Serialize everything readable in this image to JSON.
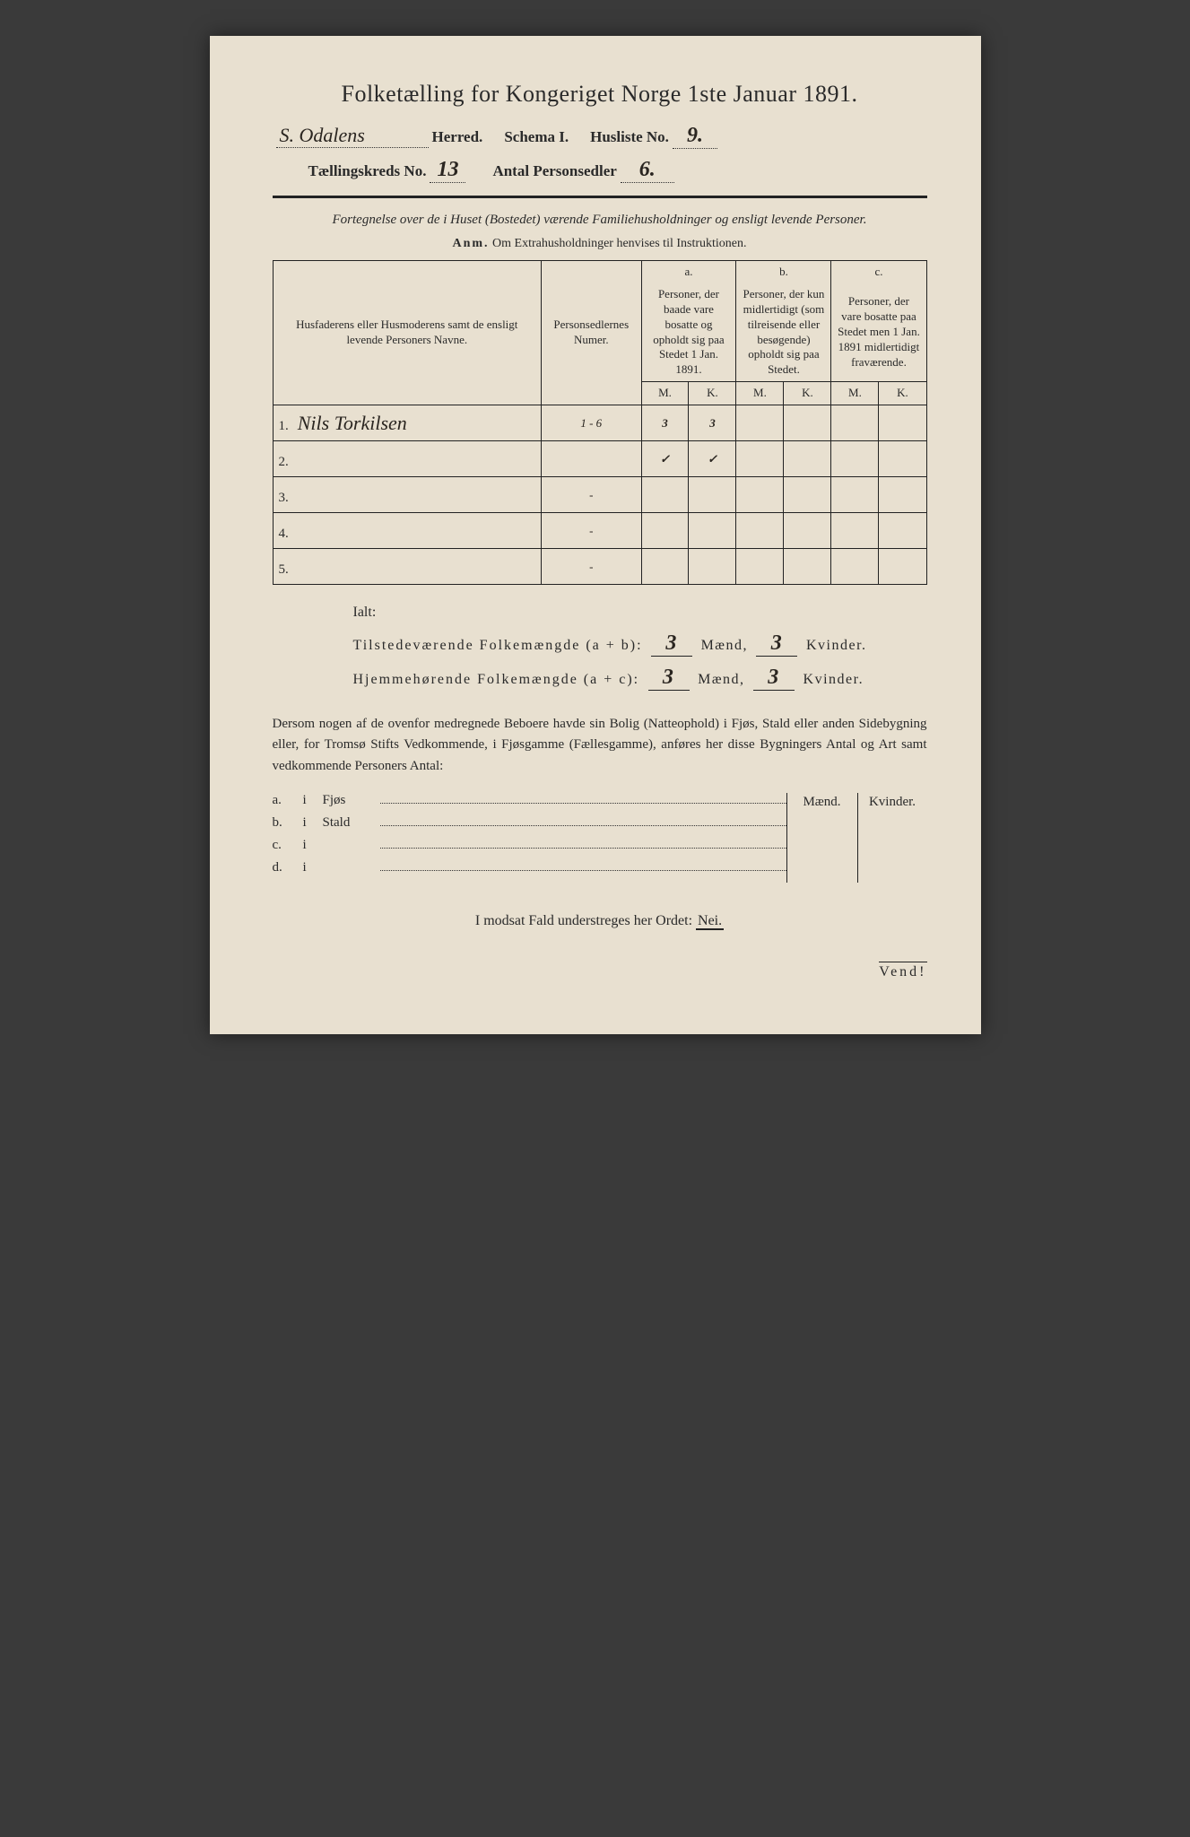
{
  "title": "Folketælling for Kongeriget Norge 1ste Januar 1891.",
  "header": {
    "herred_value": "S. Odalens",
    "herred_label": "Herred.",
    "schema_label": "Schema I.",
    "husliste_label": "Husliste No.",
    "husliste_value": "9.",
    "kreds_label": "Tællingskreds No.",
    "kreds_value": "13",
    "antal_label": "Antal Personsedler",
    "antal_value": "6."
  },
  "subtitle": "Fortegnelse over de i Huset (Bostedet) værende Familiehusholdninger og ensligt levende Personer.",
  "anm_label": "Anm.",
  "anm_text": "Om Extrahusholdninger henvises til Instruktionen.",
  "table": {
    "col1": "Husfaderens eller Husmoderens samt de ensligt levende Personers Navne.",
    "col2": "Personsedlernes Numer.",
    "col3_letter": "a.",
    "col3": "Personer, der baade vare bosatte og opholdt sig paa Stedet 1 Jan. 1891.",
    "col4_letter": "b.",
    "col4": "Personer, der kun midlertidigt (som tilreisende eller besøgende) opholdt sig paa Stedet.",
    "col5_letter": "c.",
    "col5": "Personer, der vare bosatte paa Stedet men 1 Jan. 1891 midlertidigt fraværende.",
    "m": "M.",
    "k": "K.",
    "rows": [
      {
        "n": "1.",
        "name": "Nils Torkilsen",
        "num": "1 - 6",
        "am": "3",
        "ak": "3",
        "bm": "",
        "bk": "",
        "cm": "",
        "ck": ""
      },
      {
        "n": "2.",
        "name": "",
        "num": "",
        "am": "✓",
        "ak": "✓",
        "bm": "",
        "bk": "",
        "cm": "",
        "ck": ""
      },
      {
        "n": "3.",
        "name": "",
        "num": "-",
        "am": "",
        "ak": "",
        "bm": "",
        "bk": "",
        "cm": "",
        "ck": ""
      },
      {
        "n": "4.",
        "name": "",
        "num": "-",
        "am": "",
        "ak": "",
        "bm": "",
        "bk": "",
        "cm": "",
        "ck": ""
      },
      {
        "n": "5.",
        "name": "",
        "num": "-",
        "am": "",
        "ak": "",
        "bm": "",
        "bk": "",
        "cm": "",
        "ck": ""
      }
    ]
  },
  "ialt": {
    "title": "Ialt:",
    "line1_label": "Tilstedeværende Folkemængde (a + b):",
    "line2_label": "Hjemmehørende Folkemængde (a + c):",
    "maend": "Mænd,",
    "kvinder": "Kvinder.",
    "v1m": "3",
    "v1k": "3",
    "v2m": "3",
    "v2k": "3"
  },
  "paragraph": "Dersom nogen af de ovenfor medregnede Beboere havde sin Bolig (Natteophold) i Fjøs, Stald eller anden Sidebygning eller, for Tromsø Stifts Vedkommende, i Fjøsgamme (Fællesgamme), anføres her disse Bygningers Antal og Art samt vedkommende Personers Antal:",
  "out": {
    "maend": "Mænd.",
    "kvinder": "Kvinder.",
    "rows": [
      {
        "lbl": "a.",
        "i": "i",
        "type": "Fjøs"
      },
      {
        "lbl": "b.",
        "i": "i",
        "type": "Stald"
      },
      {
        "lbl": "c.",
        "i": "i",
        "type": ""
      },
      {
        "lbl": "d.",
        "i": "i",
        "type": ""
      }
    ]
  },
  "modsat_pre": "I modsat Fald understreges her Ordet:",
  "modsat_nei": "Nei.",
  "vend": "Vend!"
}
